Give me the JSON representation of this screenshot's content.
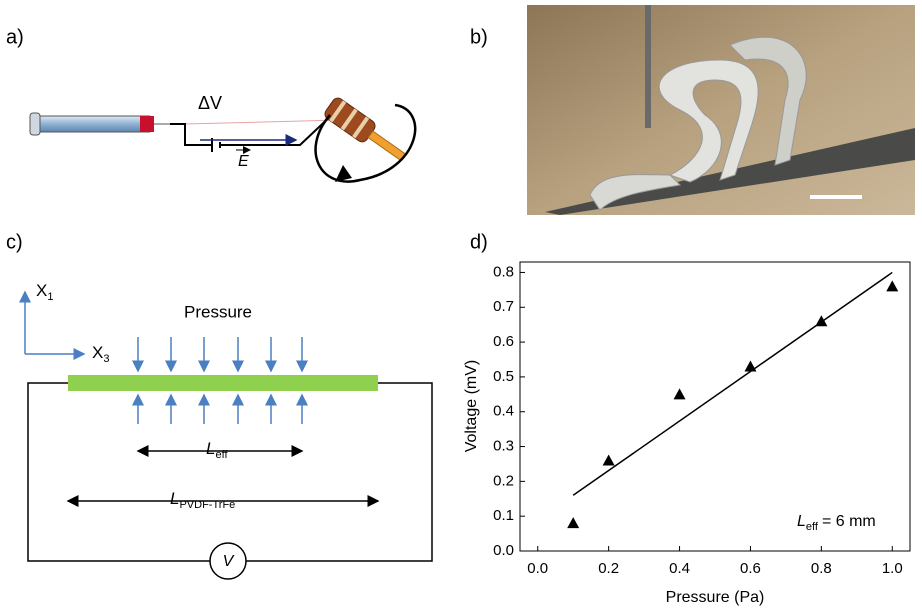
{
  "panels": {
    "a": {
      "label": "a)",
      "voltage_label": "ΔV",
      "field_label": "E"
    },
    "b": {
      "label": "b)"
    },
    "c": {
      "label": "c)",
      "axis1": "X",
      "axis1_sub": "1",
      "axis3": "X",
      "axis3_sub": "3",
      "pressure": "Pressure",
      "leff": "L",
      "leff_sub": "eff",
      "lpvdf": "L",
      "lpvdf_sub": "PVDF-TrFe",
      "voltmeter": "V"
    },
    "d": {
      "label": "d)"
    }
  },
  "chart_data": {
    "type": "scatter",
    "x_label": "Pressure (Pa)",
    "y_label": "Voltage (mV)",
    "series": [
      {
        "color": "#000000",
        "x": [
          0.1,
          0.2,
          0.4,
          0.6,
          0.8,
          1.0
        ],
        "values": [
          0.08,
          0.26,
          0.45,
          0.53,
          0.66,
          0.76
        ]
      }
    ],
    "fit": {
      "x": [
        0.1,
        1.0
      ],
      "values": [
        0.16,
        0.8
      ]
    },
    "annotation": {
      "symbol": "L",
      "sub": "eff",
      "text": "= 6 mm"
    },
    "xlim": [
      -0.05,
      1.05
    ],
    "ylim": [
      0,
      0.83
    ],
    "xticks": [
      {
        "value": 0,
        "label": "0.0"
      },
      0.2,
      0.4,
      0.6,
      0.8,
      {
        "value": 1,
        "label": "1.0"
      }
    ],
    "yticks": [
      {
        "value": 0,
        "label": "0.0"
      },
      0.1,
      0.2,
      0.3,
      0.4,
      0.5,
      0.6,
      0.7,
      0.8
    ]
  }
}
